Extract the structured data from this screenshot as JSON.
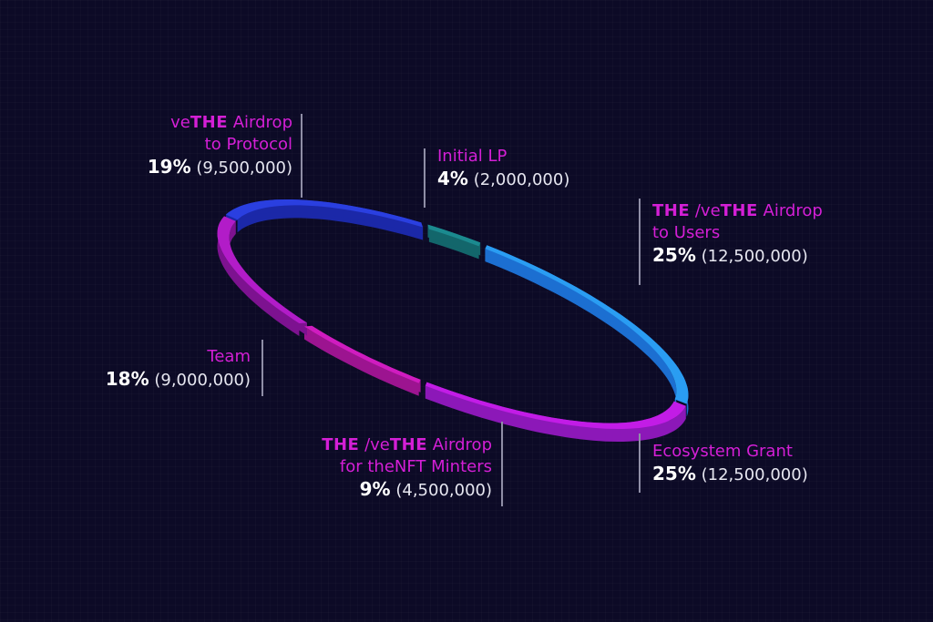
{
  "chart_data": {
    "type": "pie",
    "total": 50000000,
    "slices": [
      {
        "l1a": "ve",
        "l1b": "THE",
        "l1c": " Airdrop",
        "l2": "to Protocol",
        "percent": "19%",
        "amount": "(9,500,000)",
        "value": 9500000,
        "color_top": "#2a3fe0",
        "color_side": "#1b28a8"
      },
      {
        "l1a": "Initial LP",
        "l1b": "",
        "l1c": "",
        "l2": "",
        "percent": "4%",
        "amount": "(2,000,000)",
        "value": 2000000,
        "color_top": "#1b8a8f",
        "color_side": "#13666b"
      },
      {
        "l1a": "",
        "l1b": "THE",
        "l1c": " /ve",
        "l1d": "THE",
        "l1e": " Airdrop",
        "l2": "to Users",
        "percent": "25%",
        "amount": "(12,500,000)",
        "value": 12500000,
        "color_top": "#2a9df2",
        "color_side": "#1c6fd1"
      },
      {
        "l1a": "Ecosystem Grant",
        "l1b": "",
        "l1c": "",
        "l2": "",
        "percent": "25%",
        "amount": "(12,500,000)",
        "value": 12500000,
        "color_top": "#c21ce6",
        "color_side": "#8c18b8"
      },
      {
        "l1a": "",
        "l1b": "THE",
        "l1c": " /ve",
        "l1d": "THE",
        "l1e": " Airdrop",
        "l2": "for theNFT Minters",
        "percent": "9%",
        "amount": "(4,500,000)",
        "value": 4500000,
        "color_top": "#d01cc0",
        "color_side": "#9c1490"
      },
      {
        "l1a": "Team",
        "l1b": "",
        "l1c": "",
        "l2": "",
        "percent": "18%",
        "amount": "(9,000,000)",
        "value": 9000000,
        "color_top": "#b21cc8",
        "color_side": "#7d1290"
      }
    ]
  }
}
